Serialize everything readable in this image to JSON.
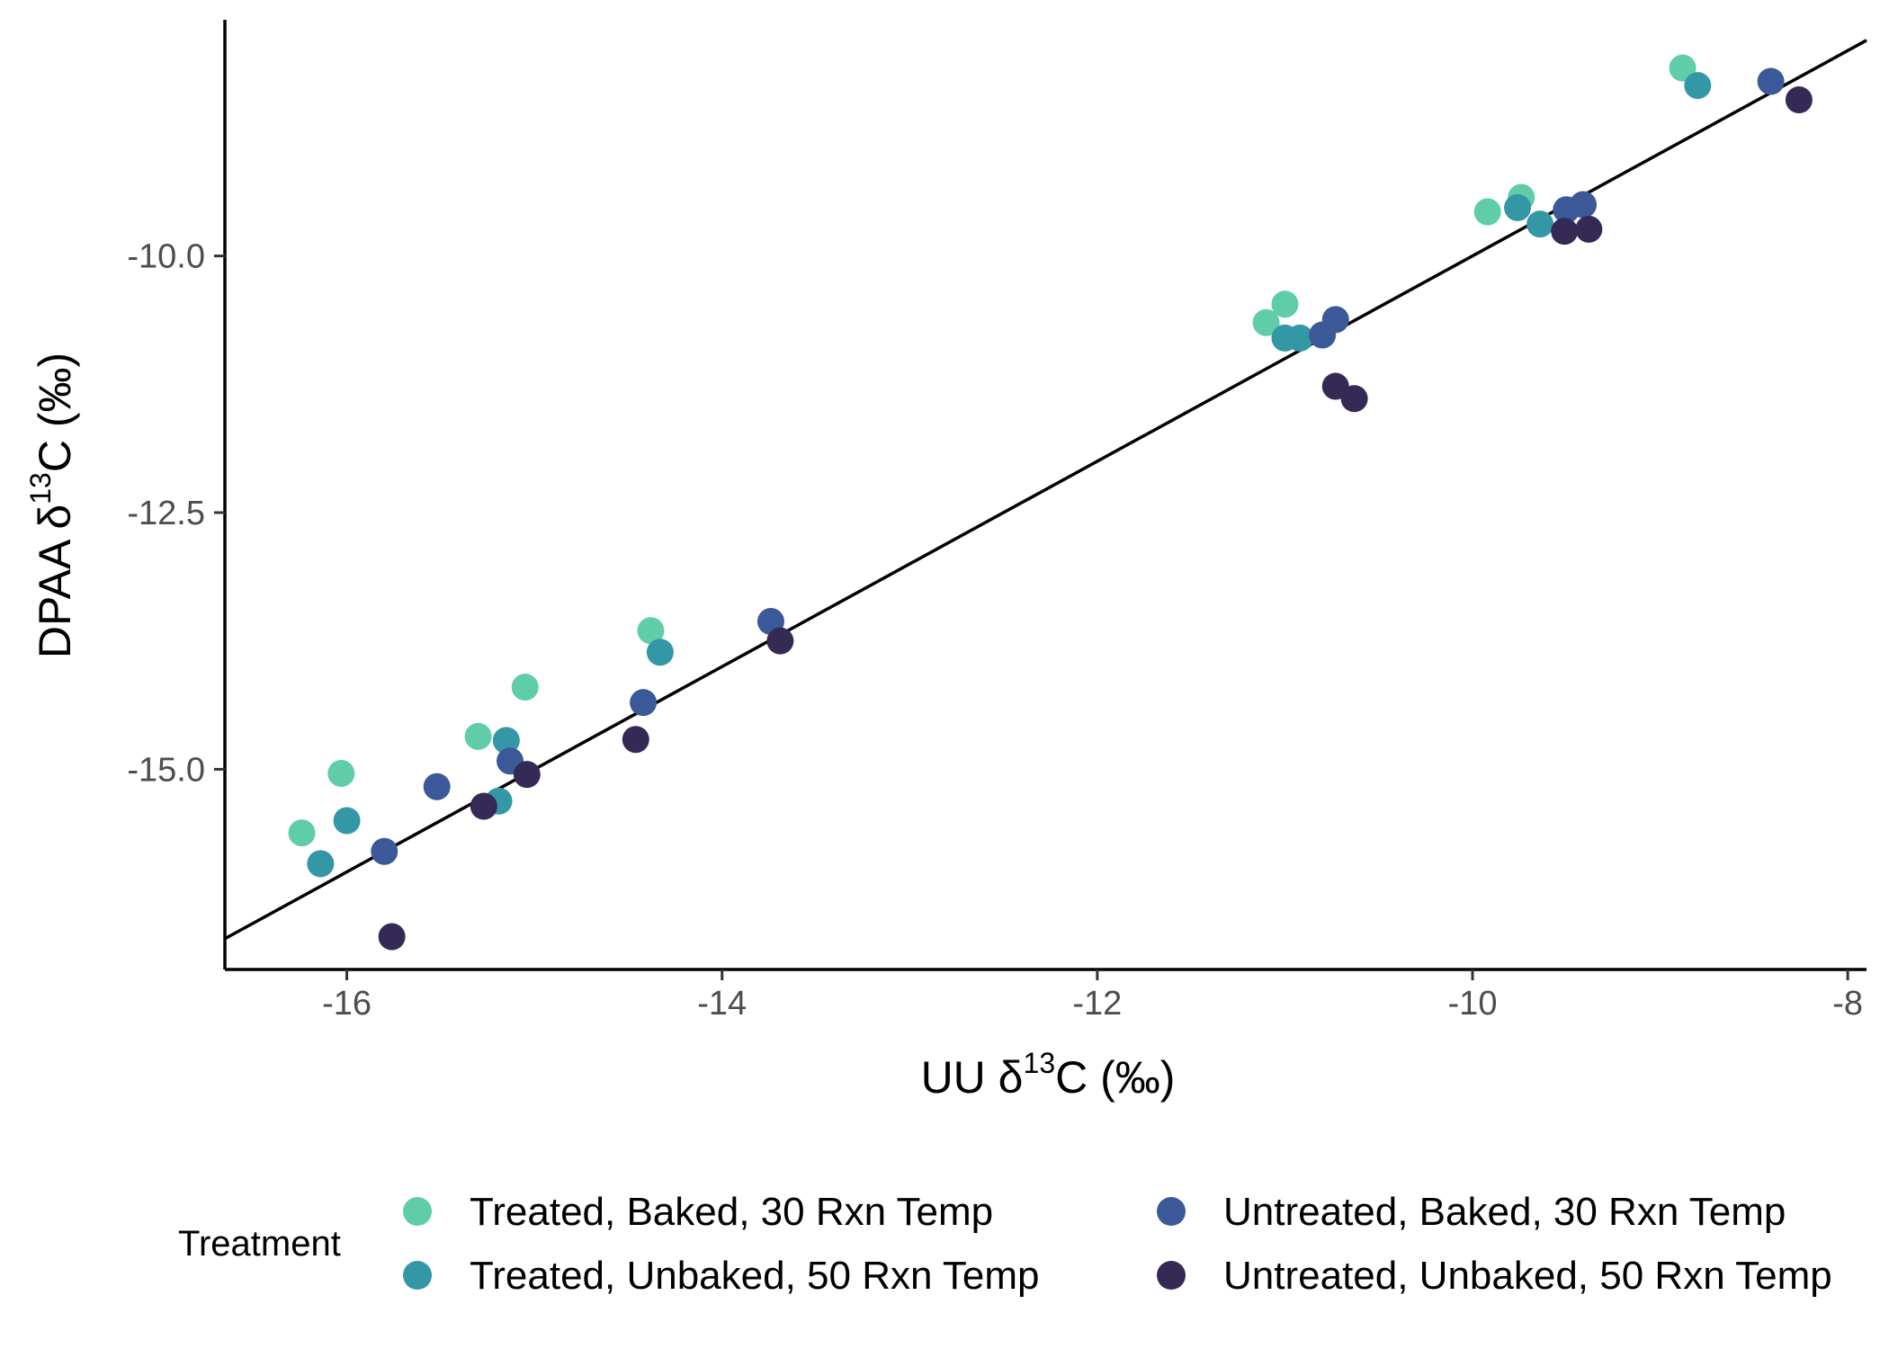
{
  "chart_data": {
    "type": "scatter",
    "title": "",
    "xlabel": {
      "pre": "UU δ",
      "sup": "13",
      "post": "C (‰)"
    },
    "ylabel": {
      "pre": "DPAA δ",
      "sup": "13",
      "post": "C (‰)"
    },
    "xlim": [
      -16.65,
      -7.9
    ],
    "ylim": [
      -16.95,
      -7.7
    ],
    "x_ticks": [
      -16,
      -14,
      -12,
      -10,
      -8
    ],
    "x_tick_labels": [
      "-16",
      "-14",
      "-12",
      "-10",
      "-8"
    ],
    "y_ticks": [
      -10.0,
      -12.5,
      -15.0
    ],
    "y_tick_labels": [
      "-10.0",
      "-12.5",
      "-15.0"
    ],
    "grid": false,
    "reference_line": {
      "slope": 1,
      "intercept": 0
    },
    "legend": {
      "title": "Treatment",
      "position": "bottom"
    },
    "series": [
      {
        "name": "Treated, Baked, 30 Rxn Temp",
        "color": "#5FCEA8",
        "points": [
          [
            -16.24,
            -15.62
          ],
          [
            -16.03,
            -15.04
          ],
          [
            -15.3,
            -14.68
          ],
          [
            -15.05,
            -14.2
          ],
          [
            -14.38,
            -13.65
          ],
          [
            -11.1,
            -10.65
          ],
          [
            -11.0,
            -10.47
          ],
          [
            -9.92,
            -9.57
          ],
          [
            -9.74,
            -9.43
          ],
          [
            -8.88,
            -8.17
          ]
        ]
      },
      {
        "name": "Treated, Unbaked, 50 Rxn Temp",
        "color": "#3497A6",
        "points": [
          [
            -16.14,
            -15.92
          ],
          [
            -16.0,
            -15.5
          ],
          [
            -15.19,
            -15.31
          ],
          [
            -15.15,
            -14.72
          ],
          [
            -14.33,
            -13.86
          ],
          [
            -11.0,
            -10.8
          ],
          [
            -10.92,
            -10.8
          ],
          [
            -9.76,
            -9.53
          ],
          [
            -9.64,
            -9.69
          ],
          [
            -8.8,
            -8.34
          ]
        ]
      },
      {
        "name": "Untreated, Baked, 30 Rxn Temp",
        "color": "#3B5998",
        "points": [
          [
            -15.8,
            -15.8
          ],
          [
            -15.52,
            -15.17
          ],
          [
            -15.13,
            -14.92
          ],
          [
            -14.42,
            -14.35
          ],
          [
            -13.74,
            -13.56
          ],
          [
            -10.8,
            -10.77
          ],
          [
            -10.73,
            -10.62
          ],
          [
            -9.5,
            -9.55
          ],
          [
            -9.41,
            -9.5
          ],
          [
            -8.41,
            -8.3
          ]
        ]
      },
      {
        "name": "Untreated, Unbaked, 50 Rxn Temp",
        "color": "#352A56",
        "points": [
          [
            -15.76,
            -16.63
          ],
          [
            -15.27,
            -15.36
          ],
          [
            -15.04,
            -15.05
          ],
          [
            -14.46,
            -14.71
          ],
          [
            -13.69,
            -13.75
          ],
          [
            -10.73,
            -11.27
          ],
          [
            -10.63,
            -11.39
          ],
          [
            -9.51,
            -9.76
          ],
          [
            -9.38,
            -9.74
          ],
          [
            -8.26,
            -8.48
          ]
        ]
      }
    ]
  }
}
